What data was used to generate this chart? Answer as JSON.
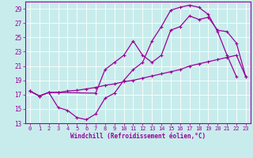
{
  "xlabel": "Windchill (Refroidissement éolien,°C)",
  "bg_color": "#c8ecec",
  "grid_color": "#ffffff",
  "line_color": "#990099",
  "xlim": [
    -0.5,
    23.5
  ],
  "ylim": [
    13,
    30
  ],
  "xticks": [
    0,
    1,
    2,
    3,
    4,
    5,
    6,
    7,
    8,
    9,
    10,
    11,
    12,
    13,
    14,
    15,
    16,
    17,
    18,
    19,
    20,
    21,
    22,
    23
  ],
  "yticks": [
    13,
    15,
    17,
    19,
    21,
    23,
    25,
    27,
    29
  ],
  "curve1_x": [
    0,
    1,
    2,
    3,
    4,
    5,
    6,
    7,
    8,
    9,
    10,
    11,
    12,
    13,
    14,
    15,
    16,
    17,
    18,
    19,
    20,
    21,
    22
  ],
  "curve1_y": [
    17.5,
    16.8,
    17.3,
    15.2,
    14.8,
    13.8,
    13.5,
    14.3,
    16.5,
    17.2,
    19.0,
    20.5,
    21.5,
    24.5,
    26.5,
    28.8,
    29.2,
    29.5,
    29.2,
    28.2,
    25.8,
    22.5,
    19.5
  ],
  "curve2_x": [
    0,
    1,
    2,
    3,
    4,
    5,
    6,
    7,
    8,
    9,
    10,
    11,
    12,
    13,
    14,
    15,
    16,
    17,
    18,
    19,
    20,
    21,
    22,
    23
  ],
  "curve2_y": [
    17.5,
    16.8,
    17.3,
    17.3,
    17.5,
    17.6,
    17.8,
    18.0,
    18.3,
    18.5,
    18.8,
    19.0,
    19.3,
    19.6,
    19.9,
    20.2,
    20.5,
    21.0,
    21.3,
    21.6,
    21.9,
    22.2,
    22.5,
    19.5
  ],
  "curve3_x": [
    0,
    1,
    2,
    3,
    7,
    8,
    9,
    10,
    11,
    12,
    13,
    14,
    15,
    16,
    17,
    18,
    19,
    20,
    21,
    22,
    23
  ],
  "curve3_y": [
    17.5,
    16.8,
    17.3,
    17.3,
    17.2,
    20.5,
    21.5,
    22.5,
    24.5,
    22.5,
    21.5,
    22.5,
    26.0,
    26.5,
    28.0,
    27.5,
    27.8,
    26.0,
    25.8,
    24.2,
    19.5
  ],
  "marker": "+",
  "markersize": 3,
  "linewidth": 0.9
}
